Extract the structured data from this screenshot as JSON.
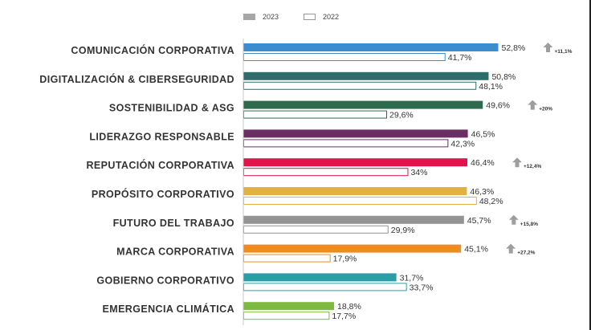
{
  "legend": {
    "label_2023": "2023",
    "label_2022": "2022"
  },
  "colors": {
    "bar_2022_fill": "#ffffff",
    "bar_2022_stroke": "#8c8c8c",
    "arrow": "#9e9e9e",
    "legend_2023": "#a6a6a6"
  },
  "chart_data": {
    "type": "bar",
    "orientation": "horizontal",
    "categories": [
      "COMUNICACIÓN CORPORATIVA",
      "DIGITALIZACIÓN & CIBERSEGURIDAD",
      "SOSTENIBILIDAD & ASG",
      "LIDERAZGO RESPONSABLE",
      "REPUTACIÓN CORPORATIVA",
      "PROPÓSITO CORPORATIVO",
      "FUTURO DEL TRABAJO",
      "MARCA CORPORATIVA",
      "GOBIERNO CORPORATIVO",
      "EMERGENCIA CLIMÁTICA"
    ],
    "series": [
      {
        "name": "2023",
        "values": [
          52.8,
          50.8,
          49.6,
          46.5,
          46.4,
          46.3,
          45.7,
          45.1,
          31.7,
          18.8
        ],
        "labels": [
          "52,8%",
          "50,8%",
          "49,6%",
          "46,5%",
          "46,4%",
          "46,3%",
          "45,7%",
          "45,1%",
          "31,7%",
          "18,8%"
        ],
        "colors": [
          "#3c8dcd",
          "#2e6d6b",
          "#2d6b4d",
          "#6b2d63",
          "#dd1548",
          "#e3b043",
          "#939393",
          "#f08c1e",
          "#2a9ea6",
          "#7cbb3f"
        ]
      },
      {
        "name": "2022",
        "values": [
          41.7,
          48.1,
          29.6,
          42.3,
          34,
          48.2,
          29.9,
          17.9,
          33.7,
          17.7
        ],
        "labels": [
          "41,7%",
          "48,1%",
          "29,6%",
          "42,3%",
          "34%",
          "48,2%",
          "29,9%",
          "17,9%",
          "33,7%",
          "17,7%"
        ],
        "stroke_colors": [
          "#3c8dcd",
          "#2e6d6b",
          "#2d6b4d",
          "#6b2d63",
          "#dd1548",
          "#e3b043",
          "#939393",
          "#f08c1e",
          "#2a9ea6",
          "#7cbb3f"
        ]
      }
    ],
    "annotations": [
      {
        "category": "COMUNICACIÓN CORPORATIVA",
        "text": "+11,1%"
      },
      {
        "category": "SOSTENIBILIDAD & ASG",
        "text": "+20%"
      },
      {
        "category": "REPUTACIÓN CORPORATIVA",
        "text": "+12,4%"
      },
      {
        "category": "FUTURO DEL TRABAJO",
        "text": "+15,8%"
      },
      {
        "category": "MARCA CORPORATIVA",
        "text": "+27,2%"
      }
    ],
    "xlim": [
      0,
      60
    ],
    "grid": false,
    "legend_position": "top"
  }
}
